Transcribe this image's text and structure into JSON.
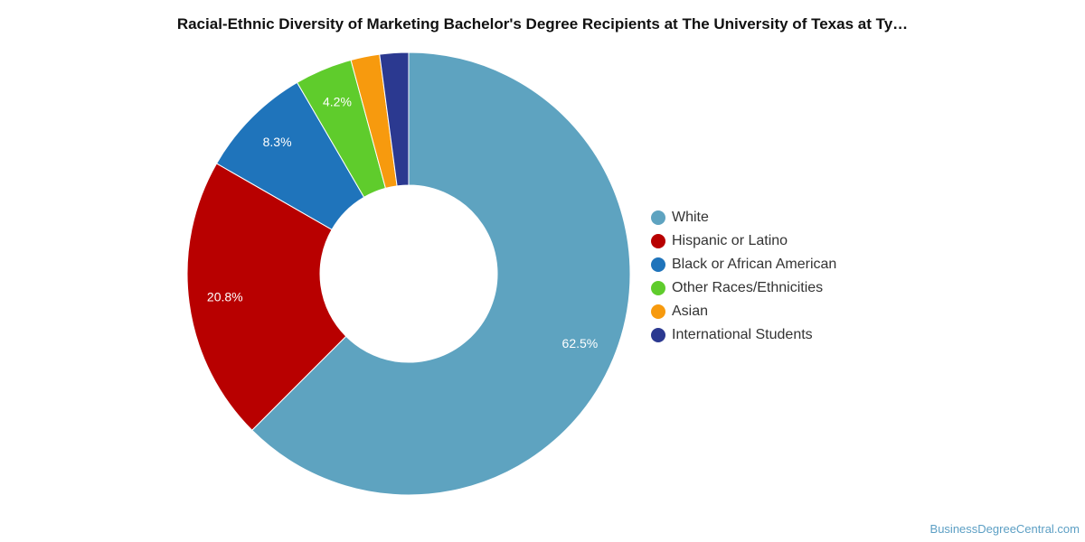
{
  "title": "Racial-Ethnic Diversity of Marketing Bachelor's Degree Recipients at The University of Texas at Ty…",
  "source": "BusinessDegreeCentral.com",
  "chart_data": {
    "type": "pie",
    "donut": true,
    "legend_position": "right",
    "series": [
      {
        "name": "White",
        "value": 62.5,
        "label": "62.5%",
        "color": "#5ea3c0"
      },
      {
        "name": "Hispanic or Latino",
        "value": 20.8,
        "label": "20.8%",
        "color": "#b80000"
      },
      {
        "name": "Black or African American",
        "value": 8.3,
        "label": "8.3%",
        "color": "#1f74bb"
      },
      {
        "name": "Other Races/Ethnicities",
        "value": 4.2,
        "label": "4.2%",
        "color": "#5fcc2c"
      },
      {
        "name": "Asian",
        "value": 2.1,
        "label": "",
        "color": "#f79a0e"
      },
      {
        "name": "International Students",
        "value": 2.1,
        "label": "",
        "color": "#2b3990"
      }
    ]
  }
}
